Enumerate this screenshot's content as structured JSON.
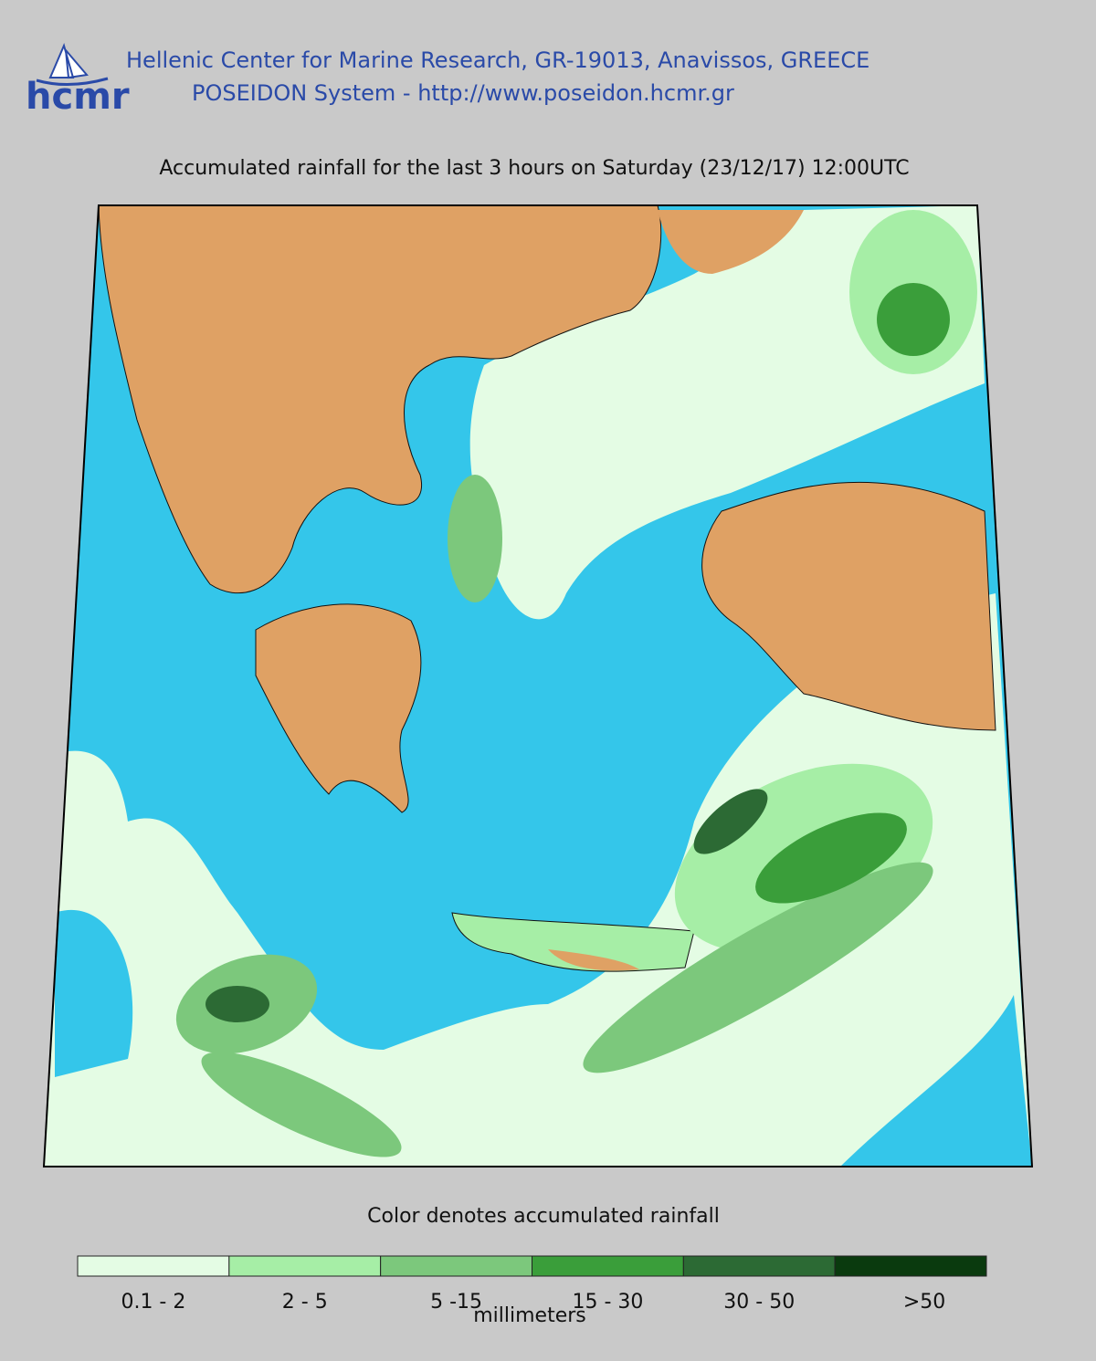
{
  "header": {
    "logo": "hcmr",
    "line1": "Hellenic Center for Marine Research, GR-19013, Anavissos, GREECE",
    "line2": "POSEIDON System - http://www.poseidon.hcmr.gr"
  },
  "map": {
    "title": "Accumulated rainfall for the last 3 hours on Saturday (23/12/17) 12:00UTC",
    "caption": "Color denotes accumulated rainfall"
  },
  "legend": {
    "unit": "millimeters",
    "items": [
      {
        "label": "0.1 - 2",
        "color": "#e4fce4"
      },
      {
        "label": "2 - 5",
        "color": "#a6eea6"
      },
      {
        "label": "5 -15",
        "color": "#7cc87c"
      },
      {
        "label": "15 - 30",
        "color": "#3a9e3a"
      },
      {
        "label": "30 - 50",
        "color": "#2c6a34"
      },
      {
        "label": ">50",
        "color": "#0a3a0e"
      }
    ]
  }
}
